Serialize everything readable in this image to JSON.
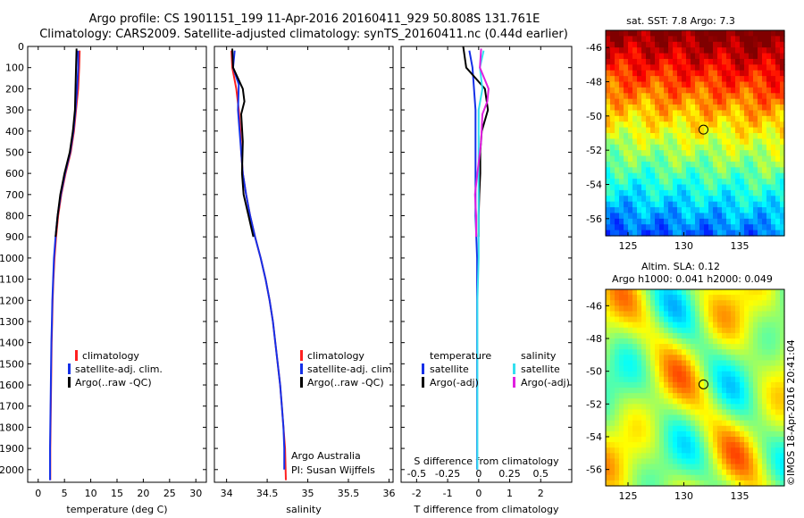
{
  "header": {
    "title_line1": "Argo profile: CS 1901151_199 11-Apr-2016 20160411_929 50.808S 131.761E",
    "title_line2": "Climatology: CARS2009. Satellite-adjusted climatology: synTS_20160411.nc (0.44d earlier)"
  },
  "colors": {
    "climatology": "#ff2020",
    "satellite": "#1530e8",
    "argo": "#000000",
    "sat_salinity": "#33e0f0",
    "argo_salinity": "#e020e0"
  },
  "depth_axis": {
    "ticks": [
      0,
      100,
      200,
      300,
      400,
      500,
      600,
      700,
      800,
      900,
      1000,
      1100,
      1200,
      1300,
      1400,
      1500,
      1600,
      1700,
      1800,
      1900,
      2000
    ],
    "range": [
      0,
      2060
    ]
  },
  "legend_profiles": {
    "climatology": "climatology",
    "satellite": "satellite-adj. clim.",
    "argo": "Argo(..raw -QC)"
  },
  "legend_diff": {
    "temp_header": "temperature",
    "sal_header": "salinity",
    "temp_sat": "satellite",
    "temp_argo": "Argo(-adj)",
    "sal_sat": "satellite",
    "sal_argo": "Argo(-adj)"
  },
  "annotations": {
    "argo_australia": "Argo Australia",
    "pi": "PI: Susan Wijffels",
    "copyright": "©IMOS 18-Apr-2016 20:41:04"
  },
  "maps": {
    "sst": {
      "title": "sat. SST: 7.8 Argo: 7.3",
      "lat_ticks": [
        "-46",
        "-48",
        "-50",
        "-52",
        "-54",
        "-56"
      ],
      "lon_ticks": [
        "125",
        "130",
        "135"
      ],
      "lat_range": [
        -57,
        -45
      ],
      "lon_range": [
        123,
        139
      ],
      "float_lat": -50.8,
      "float_lon": 131.76
    },
    "sla": {
      "title_line1": "Altim. SLA: 0.12",
      "title_line2": "Argo h1000: 0.041 h2000: 0.049",
      "lat_ticks": [
        "-46",
        "-48",
        "-50",
        "-52",
        "-54",
        "-56"
      ],
      "lon_ticks": [
        "125",
        "130",
        "135"
      ],
      "lat_range": [
        -57,
        -45
      ],
      "lon_range": [
        123,
        139
      ],
      "float_lat": -50.8,
      "float_lon": 131.76
    }
  },
  "chart_data": [
    {
      "type": "line",
      "xlabel": "temperature (deg C)",
      "x_ticks": [
        "0",
        "5",
        "10",
        "15",
        "20",
        "25",
        "30"
      ],
      "xlim": [
        -2,
        32
      ],
      "series": [
        {
          "name": "climatology",
          "points": [
            [
              7.9,
              20
            ],
            [
              7.8,
              100
            ],
            [
              7.6,
              200
            ],
            [
              7.2,
              300
            ],
            [
              6.8,
              400
            ],
            [
              6.2,
              500
            ],
            [
              5.2,
              600
            ],
            [
              4.4,
              700
            ],
            [
              3.8,
              800
            ],
            [
              3.4,
              900
            ],
            [
              3.1,
              1000
            ],
            [
              2.9,
              1100
            ],
            [
              2.75,
              1200
            ],
            [
              2.65,
              1300
            ],
            [
              2.55,
              1400
            ],
            [
              2.5,
              1500
            ],
            [
              2.45,
              1600
            ],
            [
              2.4,
              1700
            ],
            [
              2.35,
              1800
            ],
            [
              2.3,
              1900
            ],
            [
              2.3,
              2050
            ]
          ]
        },
        {
          "name": "satellite-adj. clim.",
          "points": [
            [
              7.6,
              20
            ],
            [
              7.6,
              100
            ],
            [
              7.4,
              200
            ],
            [
              7.1,
              300
            ],
            [
              6.7,
              400
            ],
            [
              6.1,
              500
            ],
            [
              5.1,
              600
            ],
            [
              4.3,
              700
            ],
            [
              3.7,
              800
            ],
            [
              3.3,
              900
            ],
            [
              3.0,
              1000
            ],
            [
              2.85,
              1100
            ],
            [
              2.7,
              1200
            ],
            [
              2.6,
              1300
            ],
            [
              2.5,
              1400
            ],
            [
              2.45,
              1500
            ],
            [
              2.4,
              1600
            ],
            [
              2.35,
              1700
            ],
            [
              2.3,
              1800
            ],
            [
              2.25,
              1900
            ],
            [
              2.25,
              2050
            ]
          ]
        },
        {
          "name": "Argo(..raw -QC)",
          "points": [
            [
              7.3,
              10
            ],
            [
              7.2,
              100
            ],
            [
              7.1,
              200
            ],
            [
              7.0,
              300
            ],
            [
              6.6,
              400
            ],
            [
              6.0,
              500
            ],
            [
              5.0,
              600
            ],
            [
              4.2,
              700
            ],
            [
              3.7,
              800
            ],
            [
              3.3,
              900
            ]
          ]
        }
      ]
    },
    {
      "type": "line",
      "xlabel": "salinity",
      "x_ticks": [
        "34",
        "34.5",
        "35",
        "35.5",
        "36"
      ],
      "xlim": [
        33.85,
        36.05
      ],
      "series": [
        {
          "name": "climatology",
          "points": [
            [
              34.06,
              20
            ],
            [
              34.07,
              100
            ],
            [
              34.12,
              200
            ],
            [
              34.15,
              300
            ],
            [
              34.17,
              400
            ],
            [
              34.18,
              500
            ],
            [
              34.2,
              600
            ],
            [
              34.24,
              700
            ],
            [
              34.29,
              800
            ],
            [
              34.35,
              900
            ],
            [
              34.42,
              1000
            ],
            [
              34.48,
              1100
            ],
            [
              34.53,
              1200
            ],
            [
              34.57,
              1300
            ],
            [
              34.6,
              1400
            ],
            [
              34.63,
              1500
            ],
            [
              34.66,
              1600
            ],
            [
              34.68,
              1700
            ],
            [
              34.7,
              1800
            ],
            [
              34.72,
              1900
            ],
            [
              34.73,
              2050
            ]
          ]
        },
        {
          "name": "satellite-adj. clim.",
          "points": [
            [
              34.1,
              20
            ],
            [
              34.08,
              100
            ],
            [
              34.15,
              180
            ],
            [
              34.14,
              300
            ],
            [
              34.16,
              400
            ],
            [
              34.18,
              500
            ],
            [
              34.2,
              600
            ],
            [
              34.24,
              700
            ],
            [
              34.29,
              800
            ],
            [
              34.35,
              900
            ],
            [
              34.42,
              1000
            ],
            [
              34.48,
              1100
            ],
            [
              34.53,
              1200
            ],
            [
              34.57,
              1300
            ],
            [
              34.6,
              1400
            ],
            [
              34.63,
              1500
            ],
            [
              34.66,
              1600
            ],
            [
              34.68,
              1700
            ],
            [
              34.7,
              1800
            ],
            [
              34.71,
              1900
            ],
            [
              34.71,
              2000
            ]
          ]
        },
        {
          "name": "Argo(..raw -QC)",
          "points": [
            [
              34.07,
              10
            ],
            [
              34.08,
              100
            ],
            [
              34.2,
              200
            ],
            [
              34.22,
              260
            ],
            [
              34.18,
              320
            ],
            [
              34.2,
              450
            ],
            [
              34.19,
              600
            ],
            [
              34.21,
              700
            ],
            [
              34.27,
              800
            ],
            [
              34.33,
              900
            ]
          ]
        }
      ]
    },
    {
      "type": "line",
      "xlabel": "T difference from climatology",
      "x_ticks": [
        "-2",
        "-1",
        "0",
        "1",
        "2"
      ],
      "xlim": [
        -2.5,
        3
      ],
      "x2label": "S difference from climatology",
      "x2_ticks": [
        "-0.5",
        "-0.25",
        "0",
        "0.25",
        "0.5"
      ],
      "x2lim": [
        -0.625,
        0.75
      ],
      "series": [
        {
          "name": "temperature satellite",
          "axis": "T",
          "points": [
            [
              -0.3,
              20
            ],
            [
              -0.2,
              100
            ],
            [
              -0.15,
              200
            ],
            [
              -0.1,
              300
            ],
            [
              -0.1,
              400
            ],
            [
              -0.1,
              600
            ],
            [
              -0.1,
              800
            ],
            [
              -0.05,
              1000
            ],
            [
              -0.05,
              1200
            ],
            [
              -0.05,
              1400
            ],
            [
              -0.05,
              1600
            ],
            [
              -0.05,
              1800
            ],
            [
              -0.05,
              2000
            ]
          ]
        },
        {
          "name": "temperature Argo(-adj)",
          "axis": "T",
          "points": [
            [
              -0.5,
              0
            ],
            [
              -0.4,
              100
            ],
            [
              0.2,
              200
            ],
            [
              0.3,
              300
            ],
            [
              0.1,
              400
            ],
            [
              0.05,
              500
            ],
            [
              0.05,
              600
            ],
            [
              0.02,
              700
            ],
            [
              0.0,
              800
            ],
            [
              0.0,
              900
            ]
          ]
        },
        {
          "name": "salinity satellite",
          "axis": "S",
          "points": [
            [
              0.04,
              20
            ],
            [
              0.01,
              100
            ],
            [
              0.03,
              200
            ],
            [
              0.0,
              300
            ],
            [
              0.0,
              400
            ],
            [
              0.0,
              600
            ],
            [
              0.0,
              800
            ],
            [
              0.0,
              1000
            ],
            [
              -0.01,
              1200
            ],
            [
              -0.01,
              1400
            ],
            [
              -0.01,
              1600
            ],
            [
              -0.01,
              1800
            ],
            [
              -0.01,
              2000
            ]
          ]
        },
        {
          "name": "salinity Argo(-adj)",
          "axis": "S",
          "points": [
            [
              0.02,
              10
            ],
            [
              0.01,
              100
            ],
            [
              0.08,
              200
            ],
            [
              0.07,
              260
            ],
            [
              0.03,
              320
            ],
            [
              0.02,
              450
            ],
            [
              -0.01,
              600
            ],
            [
              -0.03,
              700
            ],
            [
              -0.02,
              800
            ],
            [
              -0.02,
              900
            ]
          ]
        }
      ]
    }
  ]
}
